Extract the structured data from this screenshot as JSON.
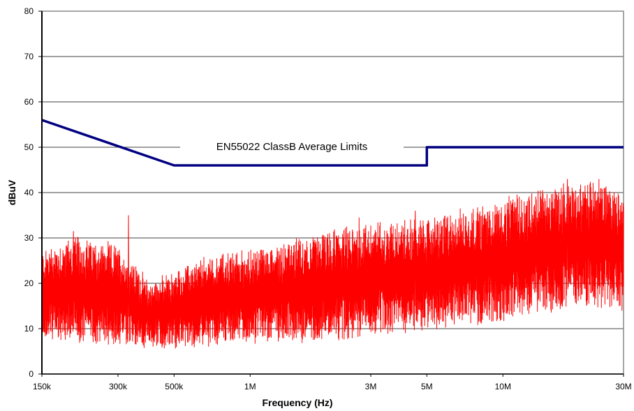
{
  "chart_data": {
    "type": "line",
    "title": "",
    "xlabel": "Frequency (Hz)",
    "ylabel": "dBuV",
    "xscale": "log",
    "xlim": [
      150000,
      30000000
    ],
    "ylim": [
      0,
      80
    ],
    "grid": "horizontal",
    "x_ticks": [
      {
        "value": 150000,
        "label": "150k"
      },
      {
        "value": 300000,
        "label": "300k"
      },
      {
        "value": 500000,
        "label": "500k"
      },
      {
        "value": 1000000,
        "label": "1M"
      },
      {
        "value": 3000000,
        "label": "3M"
      },
      {
        "value": 5000000,
        "label": "5M"
      },
      {
        "value": 10000000,
        "label": "10M"
      },
      {
        "value": 30000000,
        "label": "30M"
      }
    ],
    "y_ticks": [
      0,
      10,
      20,
      30,
      40,
      50,
      60,
      70,
      80
    ],
    "annotation": "EN55022 ClassB Average Limits",
    "series": [
      {
        "name": "",
        "role": "limit",
        "color": "#000080",
        "x": [
          150000,
          500000,
          5000000,
          5000000,
          30000000
        ],
        "y": [
          56,
          46,
          46,
          50,
          50
        ]
      },
      {
        "name": "",
        "role": "measurement",
        "color": "#ff0000",
        "x": [
          150000,
          200000,
          300000,
          400000,
          500000,
          700000,
          1000000,
          2000000,
          3000000,
          5000000,
          7000000,
          10000000,
          15000000,
          20000000,
          25000000,
          30000000
        ],
        "y_low": [
          8,
          7,
          7,
          6,
          6,
          7,
          7,
          8,
          9,
          10,
          11,
          12,
          14,
          15,
          15,
          14
        ],
        "y_high": [
          27,
          30,
          28,
          20,
          22,
          26,
          27,
          31,
          33,
          34,
          36,
          38,
          41,
          42,
          42,
          40
        ],
        "peaks": [
          {
            "x": 150000,
            "y": 27
          },
          {
            "x": 200000,
            "y": 31.5
          },
          {
            "x": 330000,
            "y": 35
          },
          {
            "x": 2700000,
            "y": 34.5
          },
          {
            "x": 4500000,
            "y": 36
          },
          {
            "x": 18000000,
            "y": 43
          },
          {
            "x": 24000000,
            "y": 43
          }
        ]
      }
    ]
  }
}
